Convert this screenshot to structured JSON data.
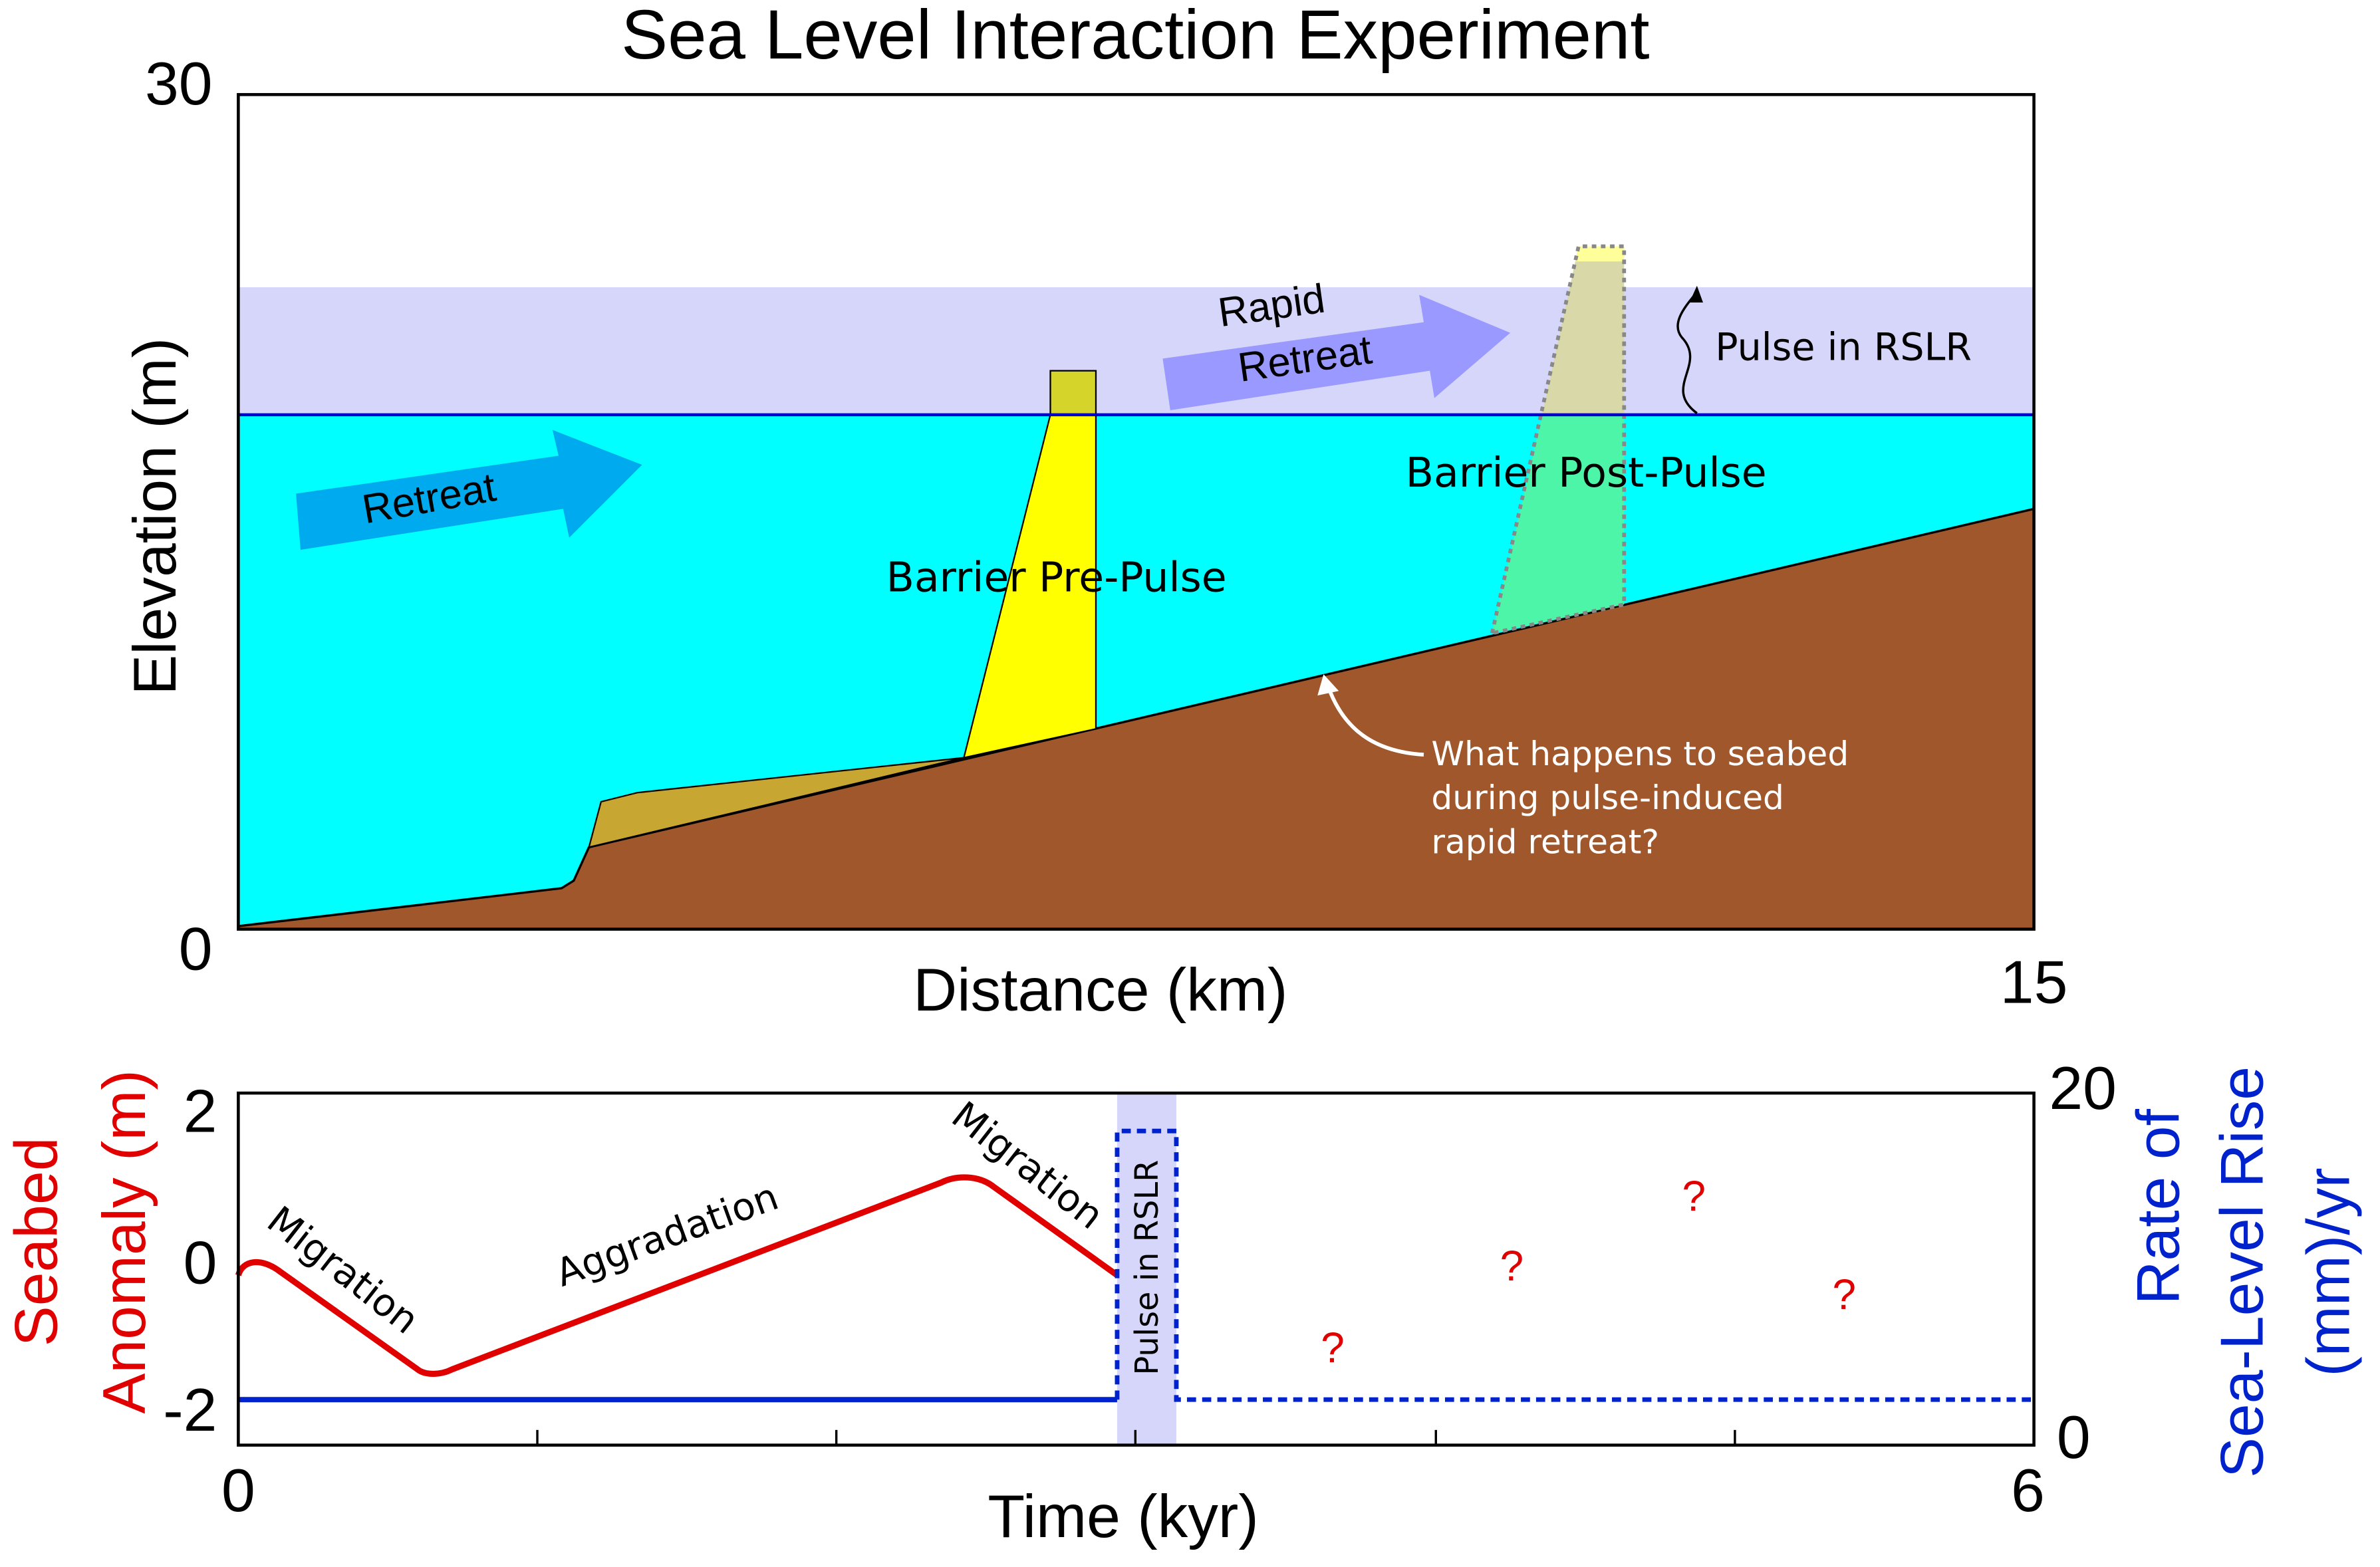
{
  "title": "Sea Level Interaction Experiment",
  "top_panel": {
    "y_axis_label": "Elevation (m)",
    "x_axis_label": "Distance (km)",
    "y_ticks": [
      "30",
      "0"
    ],
    "x_ticks": [
      "15"
    ],
    "annotations": {
      "retreat": "Retreat",
      "rapid_retreat": [
        "Rapid",
        "Retreat"
      ],
      "pulse": "Pulse in RSLR",
      "barrier_pre": "Barrier Pre-Pulse",
      "barrier_post": "Barrier Post-Pulse",
      "question": [
        "What happens to seabed",
        "during pulse-induced",
        "rapid retreat?"
      ]
    }
  },
  "bottom_panel": {
    "left_axis_label": [
      "Seabed",
      "Anomaly (m)"
    ],
    "left_ticks": [
      "2",
      "0",
      "-2"
    ],
    "x_axis_label": "Time (kyr)",
    "x_ticks": [
      "0",
      "6"
    ],
    "right_axis_label": [
      "Rate of",
      "Sea-Level Rise",
      "(mm)/yr"
    ],
    "right_ticks": [
      "20",
      "0"
    ],
    "annotations": {
      "migration_1": "Migration",
      "aggradation": "Aggradation",
      "migration_2": "Migration",
      "pulse": "Pulse in RSLR",
      "unknowns": [
        "?",
        "?",
        "?",
        "?"
      ]
    }
  }
}
